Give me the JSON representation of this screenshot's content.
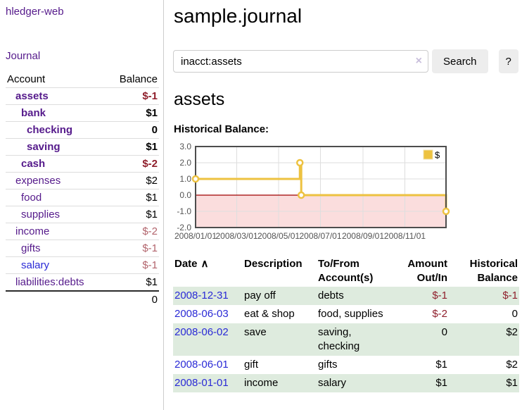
{
  "app": {
    "brand": "hledger-web"
  },
  "sidebar": {
    "nav_journal": "Journal",
    "accounts_table": {
      "headers": {
        "account": "Account",
        "balance": "Balance"
      },
      "rows": [
        {
          "label": "assets",
          "indent": 1,
          "bold": true,
          "link_tone": "visited",
          "balance": "$-1",
          "balance_tone": "neg-strong"
        },
        {
          "label": "bank",
          "indent": 2,
          "bold": true,
          "link_tone": "visited",
          "balance": "$1",
          "balance_tone": "plain"
        },
        {
          "label": "checking",
          "indent": 3,
          "bold": true,
          "link_tone": "visited",
          "balance": "0",
          "balance_tone": "plain"
        },
        {
          "label": "saving",
          "indent": 3,
          "bold": true,
          "link_tone": "visited",
          "balance": "$1",
          "balance_tone": "plain"
        },
        {
          "label": "cash",
          "indent": 2,
          "bold": true,
          "link_tone": "visited",
          "balance": "$-2",
          "balance_tone": "neg-strong"
        },
        {
          "label": "expenses",
          "indent": 1,
          "bold": false,
          "link_tone": "visited",
          "balance": "$2",
          "balance_tone": "plain"
        },
        {
          "label": "food",
          "indent": 2,
          "bold": false,
          "link_tone": "visited",
          "balance": "$1",
          "balance_tone": "plain"
        },
        {
          "label": "supplies",
          "indent": 2,
          "bold": false,
          "link_tone": "visited",
          "balance": "$1",
          "balance_tone": "plain"
        },
        {
          "label": "income",
          "indent": 1,
          "bold": false,
          "link_tone": "visited",
          "balance": "$-2",
          "balance_tone": "neg-muted"
        },
        {
          "label": "gifts",
          "indent": 2,
          "bold": false,
          "link_tone": "visited",
          "balance": "$-1",
          "balance_tone": "neg-muted"
        },
        {
          "label": "salary",
          "indent": 2,
          "bold": false,
          "link_tone": "unvisited",
          "balance": "$-1",
          "balance_tone": "neg-muted"
        },
        {
          "label": "liabilities:debts",
          "indent": 1,
          "bold": false,
          "link_tone": "visited",
          "balance": "$1",
          "balance_tone": "plain"
        }
      ],
      "total": "0"
    }
  },
  "header": {
    "title": "sample.journal"
  },
  "search": {
    "value": "inacct:assets",
    "clear_icon": "×",
    "search_button": "Search",
    "help_button": "?"
  },
  "account_page": {
    "heading": "assets",
    "chart_label": "Historical Balance:"
  },
  "chart_data": {
    "type": "line",
    "title": "Historical Balance:",
    "step": true,
    "xlim": [
      "2008/01/01",
      "2008/12/31"
    ],
    "ylim": [
      -2.0,
      3.0
    ],
    "x_ticks": [
      "2008/01/01",
      "2008/03/01",
      "2008/05/01",
      "2008/07/01",
      "2008/09/01",
      "2008/11/01"
    ],
    "y_ticks": [
      "3.0",
      "2.0",
      "1.0",
      "0.0",
      "-1.0",
      "-2.0"
    ],
    "series": [
      {
        "name": "$",
        "color": "#edc240",
        "points": [
          [
            "2008/01/01",
            1
          ],
          [
            "2008/06/01",
            2
          ],
          [
            "2008/06/03",
            0
          ],
          [
            "2008/12/31",
            -1
          ]
        ]
      }
    ],
    "legend": {
      "label": "$",
      "position": "top-right",
      "swatch_color": "#edc240"
    },
    "grid": true,
    "zero_line_color": "#a00000",
    "negative_region_color": "#fbdddd",
    "plot_border_color": "#4d4d4d",
    "grid_color": "#dedede",
    "axis_text_color": "#545454"
  },
  "register": {
    "sort_indicator": "∧",
    "headers": [
      {
        "label": "Date",
        "align": "left"
      },
      {
        "label": "Description",
        "align": "left"
      },
      {
        "label": "To/From Account(s)",
        "align": "left"
      },
      {
        "label": "Amount Out/In",
        "align": "right"
      },
      {
        "label": "Historical Balance",
        "align": "right"
      }
    ],
    "rows": [
      {
        "date": "2008-12-31",
        "description": "pay off",
        "accounts": "debts",
        "amount": "$-1",
        "amount_tone": "neg",
        "balance": "$-1",
        "balance_tone": "neg",
        "striped": true
      },
      {
        "date": "2008-06-03",
        "description": "eat & shop",
        "accounts": "food, supplies",
        "amount": "$-2",
        "amount_tone": "neg",
        "balance": "0",
        "balance_tone": "plain",
        "striped": false
      },
      {
        "date": "2008-06-02",
        "description": "save",
        "accounts": "saving, checking",
        "amount": "0",
        "amount_tone": "plain",
        "balance": "$2",
        "balance_tone": "plain",
        "striped": true
      },
      {
        "date": "2008-06-01",
        "description": "gift",
        "accounts": "gifts",
        "amount": "$1",
        "amount_tone": "plain",
        "balance": "$2",
        "balance_tone": "plain",
        "striped": false
      },
      {
        "date": "2008-01-01",
        "description": "income",
        "accounts": "salary",
        "amount": "$1",
        "amount_tone": "plain",
        "balance": "$1",
        "balance_tone": "plain",
        "striped": true
      }
    ]
  },
  "colors": {
    "link_visited_purple": "#551a8b",
    "link_blue": "#2a2ad6",
    "negative_strong": "#8f1f2c",
    "negative_muted": "#b2646c",
    "stripe_green": "#deebde",
    "chart_gold": "#edc240",
    "button_gray": "#ededed"
  }
}
